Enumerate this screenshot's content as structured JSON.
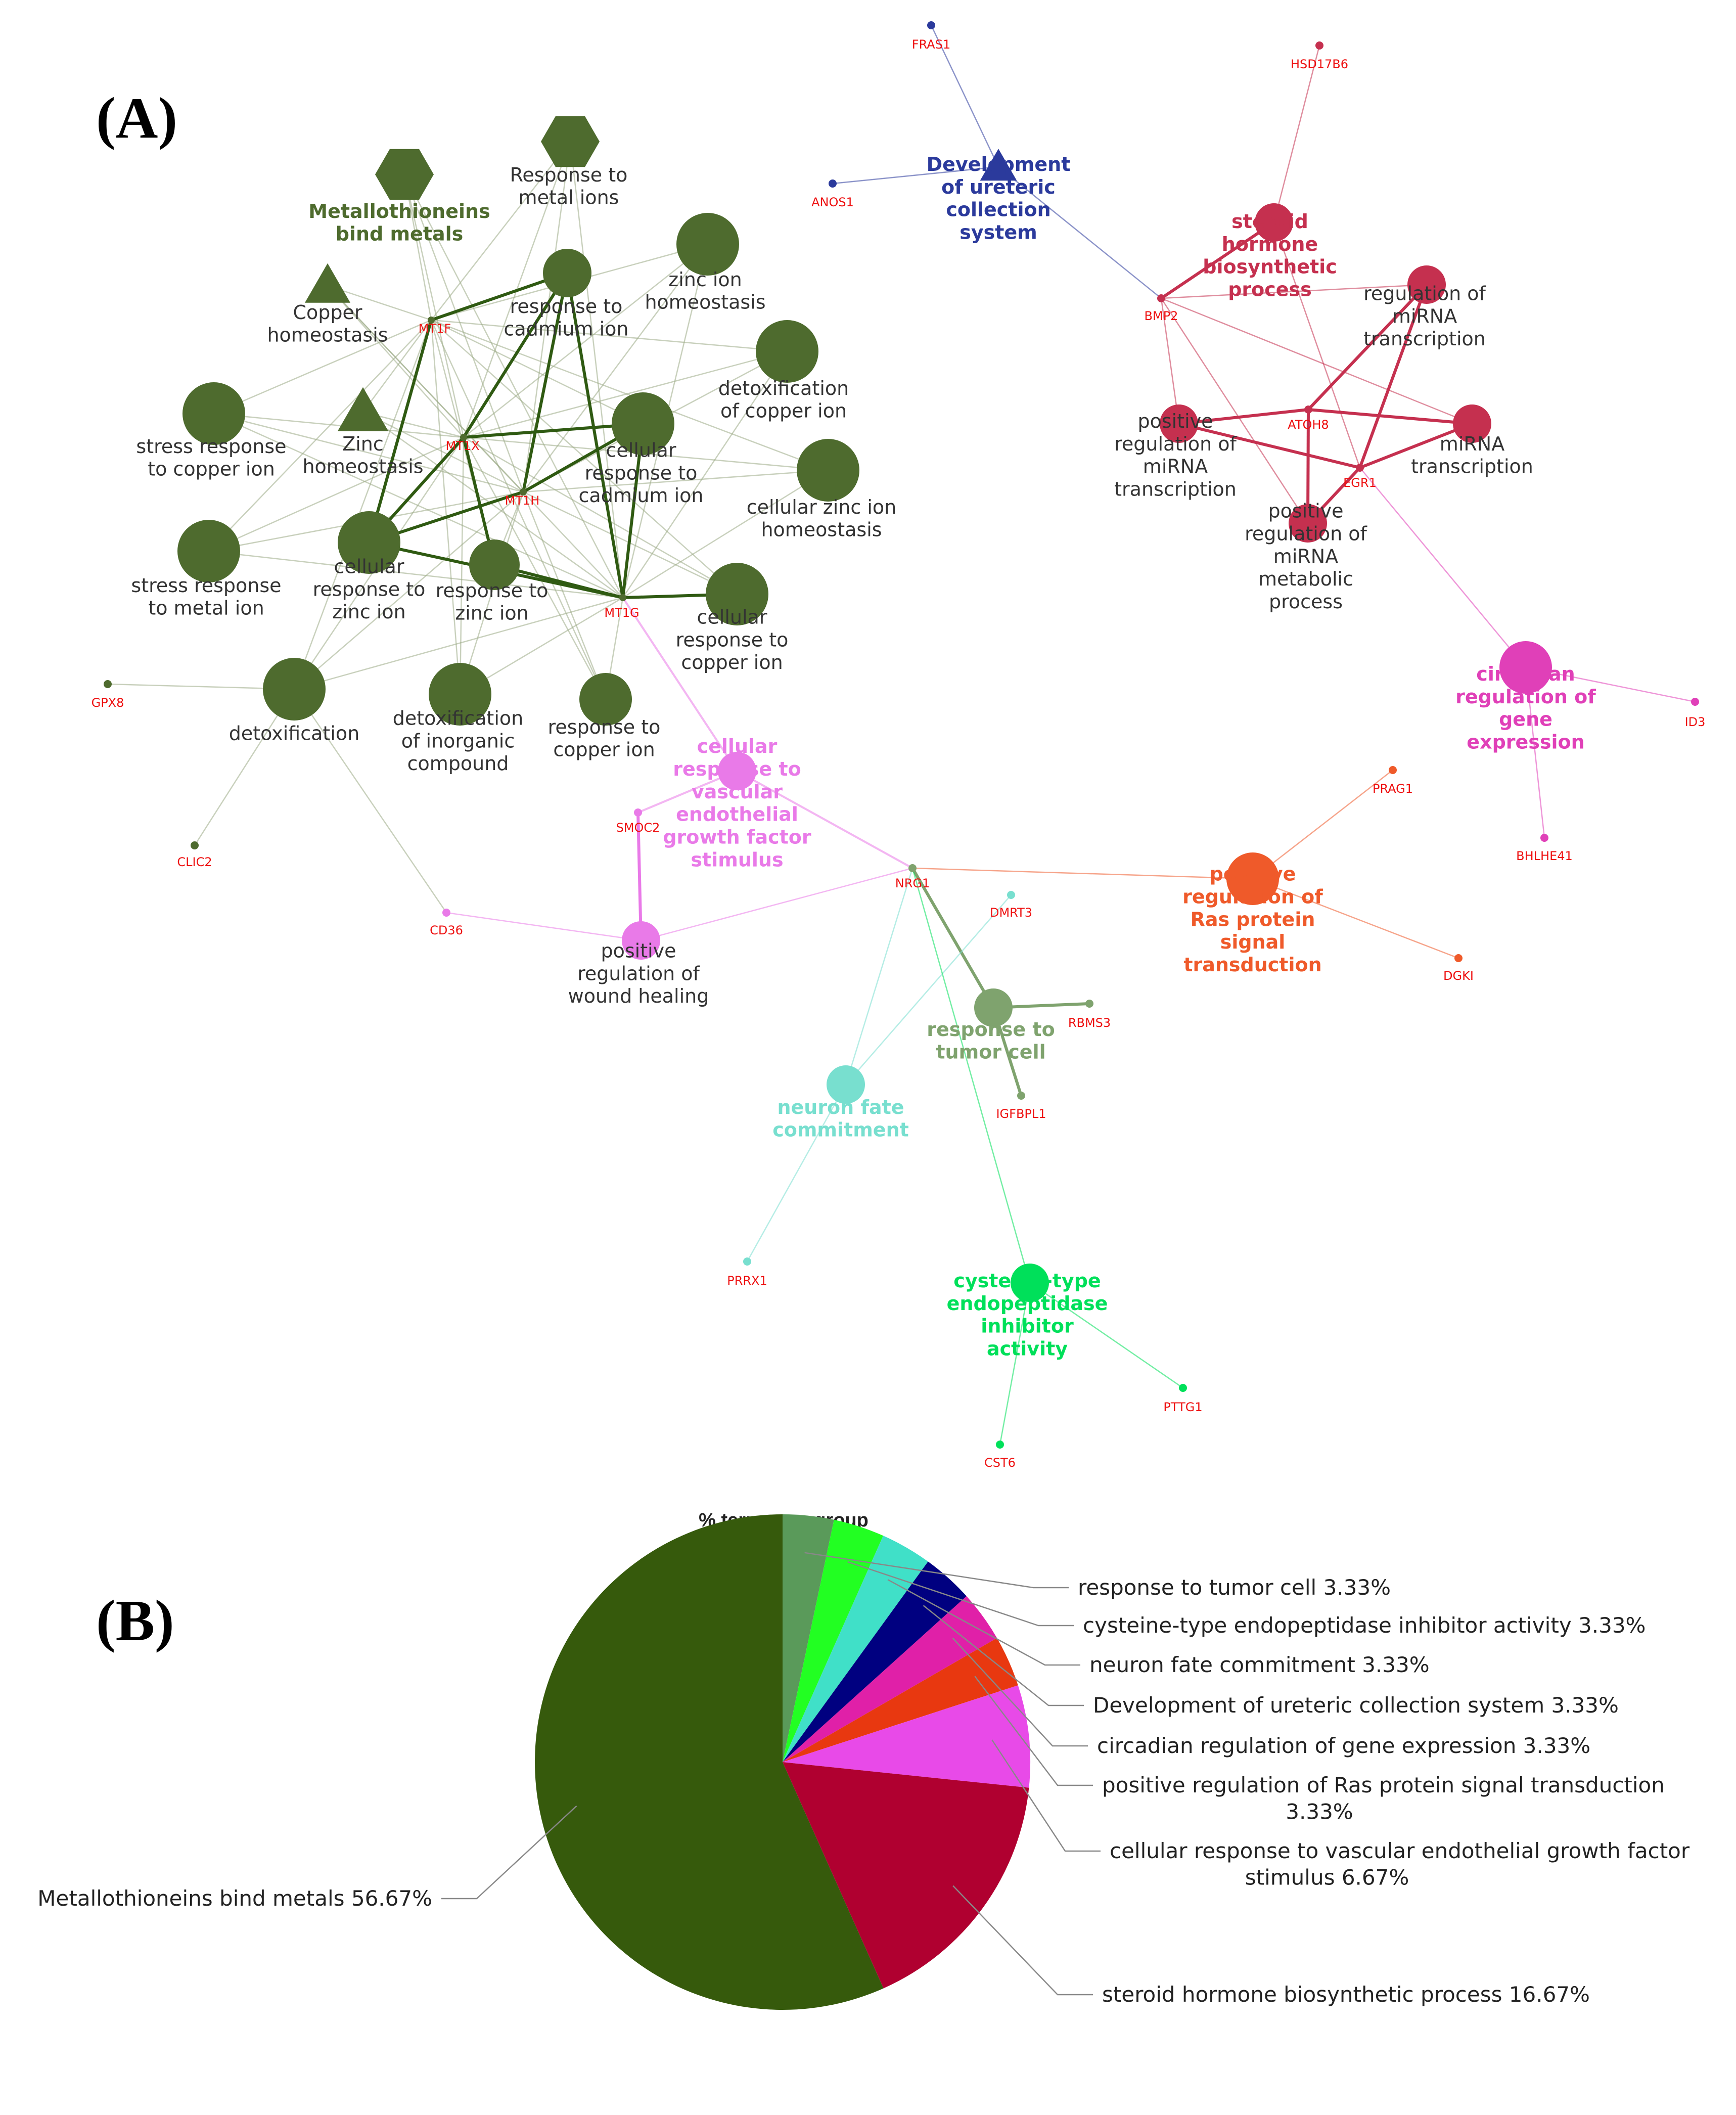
{
  "panel_a_label": "(A)",
  "panel_b_label": "(B)",
  "groups": {
    "metallothioneins": {
      "color": "#4e6b2e"
    },
    "steroid": {
      "color": "#c5304f"
    },
    "ureteric": {
      "color": "#2b3a9c"
    },
    "circadian": {
      "color": "#e040b8"
    },
    "vegf": {
      "color": "#e97ae8"
    },
    "ras": {
      "color": "#ef5a2a"
    },
    "tumor": {
      "color": "#7fa36e"
    },
    "neuron": {
      "color": "#78dfcf"
    },
    "cysteine": {
      "color": "#00e05a"
    }
  },
  "network": {
    "term_nodes": [
      {
        "id": "metallothioneins_bind_metals",
        "label": "Metallothioneins\nbind metals",
        "group": "metallothioneins",
        "shape": "hexagon",
        "lead": true
      },
      {
        "id": "response_to_metal_ions",
        "label": "Response to\nmetal ions",
        "group": "metallothioneins",
        "shape": "hexagon"
      },
      {
        "id": "copper_homeostasis",
        "label": "Copper\nhomeostasis",
        "group": "metallothioneins",
        "shape": "triangle"
      },
      {
        "id": "zinc_homeostasis",
        "label": "Zinc\nhomeostasis",
        "group": "metallothioneins",
        "shape": "triangle"
      },
      {
        "id": "response_to_cadmium_ion",
        "label": "response to\ncadmium ion",
        "group": "metallothioneins",
        "shape": "circle"
      },
      {
        "id": "zinc_ion_homeostasis",
        "label": "zinc ion\nhomeostasis",
        "group": "metallothioneins",
        "shape": "circle"
      },
      {
        "id": "detoxification_of_copper_ion",
        "label": "detoxification\nof copper ion",
        "group": "metallothioneins",
        "shape": "circle"
      },
      {
        "id": "cellular_response_to_cadmium_ion",
        "label": "cellular\nresponse to\ncadmium ion",
        "group": "metallothioneins",
        "shape": "circle"
      },
      {
        "id": "cellular_zinc_ion_homeostasis",
        "label": "cellular zinc ion\nhomeostasis",
        "group": "metallothioneins",
        "shape": "circle"
      },
      {
        "id": "stress_response_to_copper_ion",
        "label": "stress response\nto copper ion",
        "group": "metallothioneins",
        "shape": "circle"
      },
      {
        "id": "stress_response_to_metal_ion",
        "label": "stress response\nto metal ion",
        "group": "metallothioneins",
        "shape": "circle"
      },
      {
        "id": "cellular_response_to_zinc_ion",
        "label": "cellular\nresponse to\nzinc ion",
        "group": "metallothioneins",
        "shape": "circle"
      },
      {
        "id": "response_to_zinc_ion",
        "label": "response to\nzinc ion",
        "group": "metallothioneins",
        "shape": "circle"
      },
      {
        "id": "cellular_response_to_copper_ion",
        "label": "cellular\nresponse to\ncopper ion",
        "group": "metallothioneins",
        "shape": "circle"
      },
      {
        "id": "detoxification",
        "label": "detoxification",
        "group": "metallothioneins",
        "shape": "circle"
      },
      {
        "id": "detoxification_of_inorganic_compound",
        "label": "detoxification\nof inorganic\ncompound",
        "group": "metallothioneins",
        "shape": "circle"
      },
      {
        "id": "response_to_copper_ion",
        "label": "response to\ncopper ion",
        "group": "metallothioneins",
        "shape": "circle"
      },
      {
        "id": "development_of_ureteric_collection_system",
        "label": "Development\nof ureteric\ncollection\nsystem",
        "group": "ureteric",
        "shape": "triangle",
        "lead": true
      },
      {
        "id": "steroid_hormone_biosynthetic_process",
        "label": "steroid\nhormone\nbiosynthetic\nprocess",
        "group": "steroid",
        "shape": "circle",
        "lead": true
      },
      {
        "id": "regulation_of_mirna_transcription",
        "label": "regulation of\nmiRNA\ntranscription",
        "group": "steroid",
        "shape": "circle"
      },
      {
        "id": "positive_regulation_of_mirna_transcription",
        "label": "positive\nregulation of\nmiRNA\ntranscription",
        "group": "steroid",
        "shape": "circle"
      },
      {
        "id": "mirna_transcription",
        "label": "miRNA\ntranscription",
        "group": "steroid",
        "shape": "circle"
      },
      {
        "id": "positive_regulation_of_mirna_metabolic_process",
        "label": "positive\nregulation of\nmiRNA\nmetabolic\nprocess",
        "group": "steroid",
        "shape": "circle"
      },
      {
        "id": "circadian_regulation_of_gene_expression",
        "label": "circadian\nregulation of\ngene\nexpression",
        "group": "circadian",
        "shape": "circle",
        "lead": true
      },
      {
        "id": "cellular_response_to_vegf_stimulus",
        "label": "cellular\nresponse to\nvascular\nendothelial\ngrowth factor\nstimulus",
        "group": "vegf",
        "shape": "circle",
        "lead": true
      },
      {
        "id": "positive_regulation_of_wound_healing",
        "label": "positive\nregulation of\nwound healing",
        "group": "vegf",
        "shape": "circle"
      },
      {
        "id": "positive_regulation_of_ras_protein_signal_transduction",
        "label": "positive\nregulation of\nRas protein\nsignal\ntransduction",
        "group": "ras",
        "shape": "circle",
        "lead": true
      },
      {
        "id": "response_to_tumor_cell",
        "label": "response to\ntumor cell",
        "group": "tumor",
        "shape": "circle",
        "lead": true
      },
      {
        "id": "neuron_fate_commitment",
        "label": "neuron fate\ncommitment",
        "group": "neuron",
        "shape": "circle",
        "lead": true
      },
      {
        "id": "cysteine_type_endopeptidase_inhibitor_activity",
        "label": "cysteine-type\nendopeptidase\ninhibitor\nactivity",
        "group": "cysteine",
        "shape": "circle",
        "lead": true
      }
    ],
    "gene_nodes": [
      {
        "id": "MT1F",
        "group": "metallothioneins"
      },
      {
        "id": "MT1X",
        "group": "metallothioneins"
      },
      {
        "id": "MT1H",
        "group": "metallothioneins"
      },
      {
        "id": "MT1G",
        "group": "metallothioneins"
      },
      {
        "id": "GPX8",
        "group": "metallothioneins"
      },
      {
        "id": "CLIC2",
        "group": "metallothioneins"
      },
      {
        "id": "CD36",
        "group": "vegf"
      },
      {
        "id": "SMOC2",
        "group": "vegf"
      },
      {
        "id": "NRG1",
        "group": "tumor"
      },
      {
        "id": "FRAS1",
        "group": "ureteric"
      },
      {
        "id": "ANOS1",
        "group": "ureteric"
      },
      {
        "id": "BMP2",
        "group": "steroid"
      },
      {
        "id": "HSD17B6",
        "group": "steroid"
      },
      {
        "id": "ATOH8",
        "group": "steroid"
      },
      {
        "id": "EGR1",
        "group": "steroid"
      },
      {
        "id": "ID3",
        "group": "circadian"
      },
      {
        "id": "BHLHE41",
        "group": "circadian"
      },
      {
        "id": "PRAG1",
        "group": "ras"
      },
      {
        "id": "DGKI",
        "group": "ras"
      },
      {
        "id": "DMRT3",
        "group": "neuron"
      },
      {
        "id": "RBMS3",
        "group": "tumor"
      },
      {
        "id": "IGFBPL1",
        "group": "tumor"
      },
      {
        "id": "PRRX1",
        "group": "neuron"
      },
      {
        "id": "PTTG1",
        "group": "cysteine"
      },
      {
        "id": "CST6",
        "group": "cysteine"
      }
    ]
  },
  "chart_data": {
    "type": "pie",
    "title": "% terms per group",
    "series": [
      {
        "name": "response to tumor cell",
        "value": 3.33,
        "label": "response to tumor cell 3.33%",
        "color": "#5a9a5a"
      },
      {
        "name": "cysteine-type endopeptidase inhibitor activity",
        "value": 3.33,
        "label": "cysteine-type endopeptidase inhibitor activity 3.33%",
        "color": "#22ff22"
      },
      {
        "name": "neuron fate commitment",
        "value": 3.33,
        "label": "neuron fate commitment 3.33%",
        "color": "#40e0c8"
      },
      {
        "name": "Development of ureteric collection system",
        "value": 3.33,
        "label": "Development of ureteric collection system 3.33%",
        "color": "#000080"
      },
      {
        "name": "circadian regulation of gene expression",
        "value": 3.33,
        "label": "circadian regulation of gene expression 3.33%",
        "color": "#e020a8"
      },
      {
        "name": "positive regulation of Ras protein signal transduction",
        "value": 3.33,
        "label": "positive regulation of Ras protein signal transduction\n3.33%",
        "color": "#e83810"
      },
      {
        "name": "cellular response to vascular endothelial growth factor stimulus",
        "value": 6.67,
        "label": "cellular response to vascular endothelial growth factor\nstimulus 6.67%",
        "color": "#e84ae8"
      },
      {
        "name": "steroid hormone biosynthetic process",
        "value": 16.67,
        "label": "steroid hormone biosynthetic process 16.67%",
        "color": "#b00030"
      },
      {
        "name": "Metallothioneins bind metals",
        "value": 56.67,
        "label": "Metallothioneins bind metals 56.67%",
        "color": "#365a0c"
      }
    ]
  }
}
